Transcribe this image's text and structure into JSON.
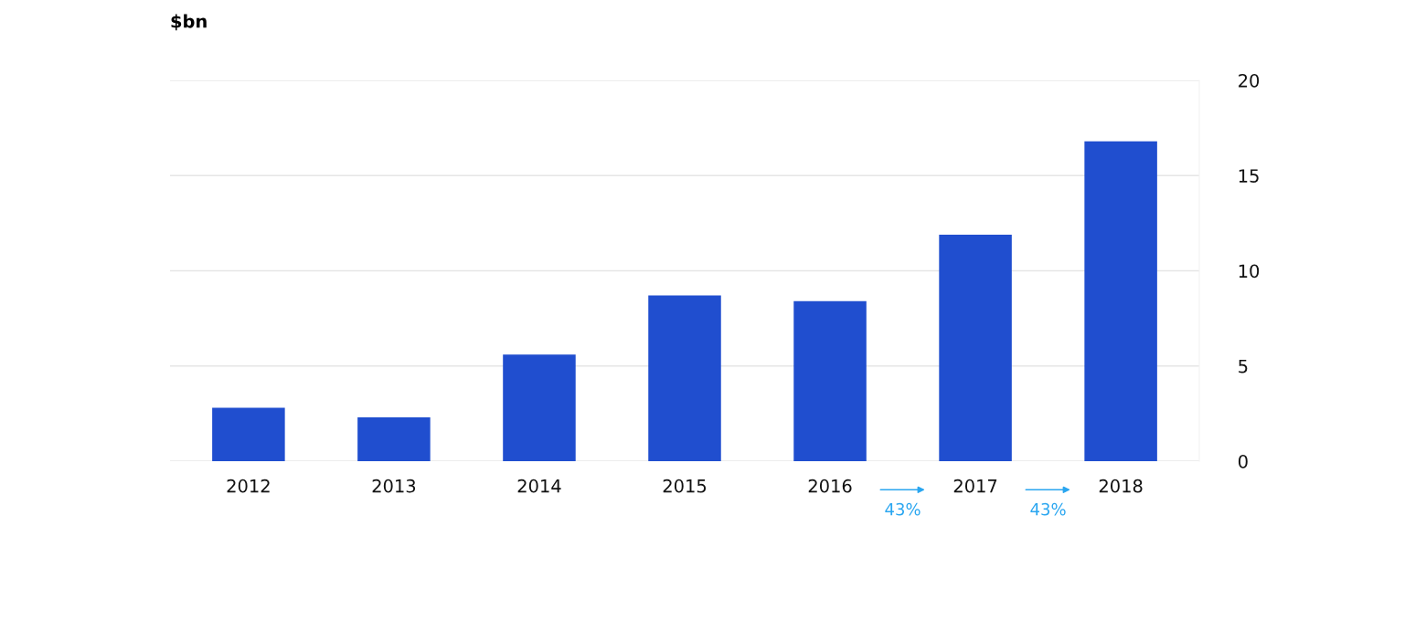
{
  "chart_data": {
    "type": "bar",
    "ylabel": "$bn",
    "categories": [
      "2012",
      "2013",
      "2014",
      "2015",
      "2016",
      "2017",
      "2018"
    ],
    "values": [
      2.8,
      2.3,
      5.6,
      8.7,
      8.4,
      11.9,
      16.8
    ],
    "color": "#204ecf",
    "ylim": [
      0,
      20
    ],
    "yticks": [
      0,
      5,
      10,
      15,
      20
    ],
    "grid": "y",
    "legend": false,
    "annotations": [
      "43%",
      "43%"
    ]
  }
}
